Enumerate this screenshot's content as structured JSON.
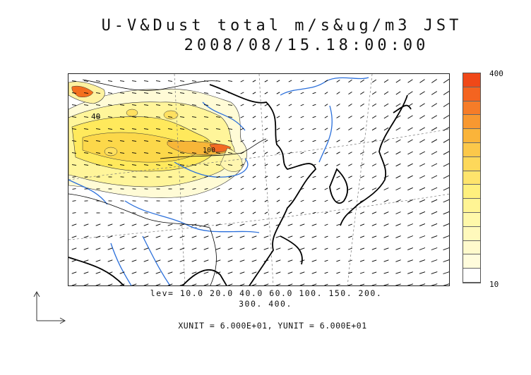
{
  "title": {
    "line1": "U-V&Dust total m/s&ug/m3 JST",
    "line2": "2008/08/15.18:00:00"
  },
  "colorbar": {
    "max_label": "400",
    "min_label": "10",
    "colors": [
      "#f04818",
      "#f46420",
      "#f67c28",
      "#f89830",
      "#fab43a",
      "#fcc84a",
      "#fdd85a",
      "#fee46c",
      "#fff07e",
      "#fff494",
      "#fff8aa",
      "#fff9bc",
      "#fffacc",
      "#fffcdc",
      "#ffffff"
    ]
  },
  "levels": {
    "line1": "lev= 10.0 20.0 40.0 60.0 100. 150. 200.",
    "line2": "300. 400."
  },
  "units": "XUNIT = 6.000E+01, YUNIT = 6.000E+01",
  "map_labels": {
    "contour_a": "40",
    "contour_b": "100"
  },
  "colors": {
    "coast": "#000000",
    "rivers": "#2a6fdb",
    "grid": "#777777"
  }
}
